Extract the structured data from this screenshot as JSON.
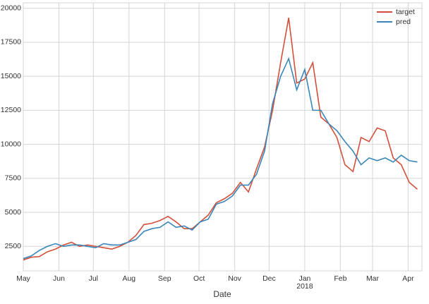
{
  "chart_data": {
    "type": "line",
    "x": [
      0,
      7,
      14,
      21,
      28,
      35,
      42,
      49,
      56,
      63,
      70,
      77,
      84,
      91,
      98,
      105,
      112,
      119,
      126,
      133,
      140,
      147,
      154,
      161,
      168,
      175,
      182,
      189,
      196,
      203,
      210,
      217,
      224,
      231,
      238,
      245,
      252,
      259,
      266,
      273,
      280,
      287,
      294,
      301,
      308,
      315,
      322,
      329,
      336,
      343
    ],
    "series": [
      {
        "name": "target",
        "color": "#d2503a",
        "values": [
          1500,
          1700,
          1750,
          2100,
          2300,
          2600,
          2800,
          2500,
          2600,
          2500,
          2400,
          2300,
          2500,
          2800,
          3300,
          4100,
          4200,
          4400,
          4700,
          4300,
          3800,
          3800,
          4300,
          4800,
          5700,
          6000,
          6400,
          7200,
          6500,
          8200,
          9800,
          12500,
          16000,
          19300,
          14500,
          14800,
          16000,
          12000,
          11500,
          10500,
          8500,
          8000,
          10500,
          10200,
          11200,
          11000,
          9000,
          8500,
          7200,
          6700
        ]
      },
      {
        "name": "pred",
        "color": "#3a86b8",
        "values": [
          1600,
          1800,
          2200,
          2500,
          2700,
          2500,
          2600,
          2600,
          2500,
          2400,
          2700,
          2600,
          2600,
          2800,
          3000,
          3600,
          3800,
          3900,
          4300,
          3900,
          4000,
          3700,
          4300,
          4500,
          5600,
          5800,
          6200,
          7000,
          7000,
          7800,
          9500,
          13000,
          15000,
          16300,
          14000,
          15500,
          12500,
          12500,
          11500,
          11000,
          10200,
          9500,
          8500,
          9000,
          8800,
          9000,
          8700,
          9200,
          8800,
          8700
        ]
      }
    ],
    "xlim": [
      0,
      347
    ],
    "xticks": [
      {
        "value": 0,
        "label": "May"
      },
      {
        "value": 31,
        "label": "Jun"
      },
      {
        "value": 61,
        "label": "Jul"
      },
      {
        "value": 92,
        "label": "Aug"
      },
      {
        "value": 123,
        "label": "Sep"
      },
      {
        "value": 153,
        "label": "Oct"
      },
      {
        "value": 184,
        "label": "Nov"
      },
      {
        "value": 214,
        "label": "Dec"
      },
      {
        "value": 245,
        "label": "Jan"
      },
      {
        "value": 276,
        "label": "Feb"
      },
      {
        "value": 304,
        "label": "Mar"
      },
      {
        "value": 335,
        "label": "Apr"
      }
    ],
    "x_year_label": "2018",
    "ylim": [
      700,
      20400
    ],
    "yticks": [
      2500,
      5000,
      7500,
      10000,
      12500,
      15000,
      17500,
      20000
    ],
    "xlabel": "Date",
    "grid": true,
    "legend": "upper-right"
  }
}
